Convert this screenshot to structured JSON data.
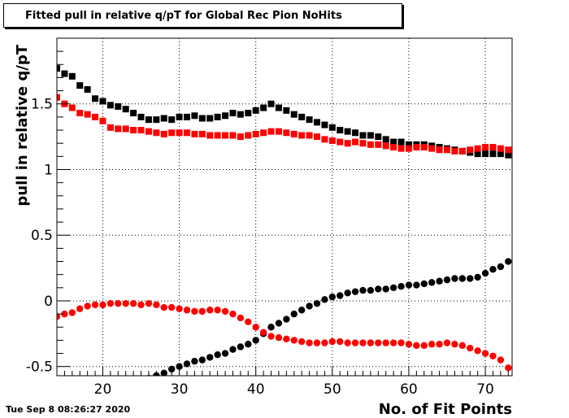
{
  "title": "Fitted pull in relative q/pT for Global Rec Pion NoHits",
  "timestamp": "Tue Sep  8 08:26:27 2020",
  "chart_data": {
    "type": "scatter",
    "xlabel": "No. of Fit Points",
    "ylabel": "pull in relative q/pT",
    "xlim": [
      14,
      73.5
    ],
    "ylim": [
      -0.57,
      2.0
    ],
    "x_ticks": [
      20,
      30,
      40,
      50,
      60,
      70
    ],
    "y_ticks": [
      -0.5,
      0,
      0.5,
      1,
      1.5
    ],
    "grid": true,
    "series": [
      {
        "color": "#000000",
        "marker": "square",
        "x": [
          14,
          15,
          16,
          17,
          18,
          19,
          20,
          21,
          22,
          23,
          24,
          25,
          26,
          27,
          28,
          29,
          30,
          31,
          32,
          33,
          34,
          35,
          36,
          37,
          38,
          39,
          40,
          41,
          42,
          43,
          44,
          45,
          46,
          47,
          48,
          49,
          50,
          51,
          52,
          53,
          54,
          55,
          56,
          57,
          58,
          59,
          60,
          61,
          62,
          63,
          64,
          65,
          66,
          67,
          68,
          69,
          70,
          71,
          72,
          73
        ],
        "y": [
          1.77,
          1.73,
          1.71,
          1.64,
          1.61,
          1.54,
          1.52,
          1.49,
          1.48,
          1.46,
          1.43,
          1.4,
          1.38,
          1.38,
          1.39,
          1.38,
          1.4,
          1.4,
          1.41,
          1.39,
          1.39,
          1.4,
          1.41,
          1.43,
          1.42,
          1.43,
          1.45,
          1.47,
          1.5,
          1.47,
          1.45,
          1.42,
          1.4,
          1.38,
          1.36,
          1.34,
          1.32,
          1.3,
          1.29,
          1.28,
          1.26,
          1.26,
          1.25,
          1.23,
          1.21,
          1.21,
          1.19,
          1.19,
          1.19,
          1.18,
          1.17,
          1.16,
          1.15,
          1.14,
          1.13,
          1.12,
          1.12,
          1.12,
          1.12,
          1.11
        ]
      },
      {
        "color": "#ff0000",
        "marker": "square",
        "x": [
          14,
          15,
          16,
          17,
          18,
          19,
          20,
          21,
          22,
          23,
          24,
          25,
          26,
          27,
          28,
          29,
          30,
          31,
          32,
          33,
          34,
          35,
          36,
          37,
          38,
          39,
          40,
          41,
          42,
          43,
          44,
          45,
          46,
          47,
          48,
          49,
          50,
          51,
          52,
          53,
          54,
          55,
          56,
          57,
          58,
          59,
          60,
          61,
          62,
          63,
          64,
          65,
          66,
          67,
          68,
          69,
          70,
          71,
          72,
          73
        ],
        "y": [
          1.55,
          1.5,
          1.47,
          1.43,
          1.42,
          1.4,
          1.37,
          1.32,
          1.31,
          1.31,
          1.3,
          1.3,
          1.29,
          1.28,
          1.27,
          1.28,
          1.28,
          1.28,
          1.27,
          1.27,
          1.26,
          1.26,
          1.26,
          1.26,
          1.25,
          1.26,
          1.27,
          1.28,
          1.29,
          1.29,
          1.28,
          1.27,
          1.26,
          1.26,
          1.25,
          1.23,
          1.22,
          1.21,
          1.2,
          1.21,
          1.2,
          1.19,
          1.19,
          1.18,
          1.17,
          1.16,
          1.16,
          1.17,
          1.17,
          1.16,
          1.15,
          1.15,
          1.14,
          1.14,
          1.15,
          1.16,
          1.17,
          1.17,
          1.16,
          1.15
        ]
      },
      {
        "color": "#000000",
        "marker": "circle",
        "x": [
          26,
          27,
          28,
          29,
          30,
          31,
          32,
          33,
          34,
          35,
          36,
          37,
          38,
          39,
          40,
          41,
          42,
          43,
          44,
          45,
          46,
          47,
          48,
          49,
          50,
          51,
          52,
          53,
          54,
          55,
          56,
          57,
          58,
          59,
          60,
          61,
          62,
          63,
          64,
          65,
          66,
          67,
          68,
          69,
          70,
          71,
          72,
          73
        ],
        "y": [
          -0.59,
          -0.57,
          -0.55,
          -0.52,
          -0.5,
          -0.48,
          -0.46,
          -0.45,
          -0.43,
          -0.41,
          -0.4,
          -0.37,
          -0.35,
          -0.33,
          -0.3,
          -0.25,
          -0.2,
          -0.17,
          -0.14,
          -0.1,
          -0.07,
          -0.04,
          -0.02,
          0.01,
          0.03,
          0.04,
          0.06,
          0.07,
          0.08,
          0.08,
          0.09,
          0.09,
          0.1,
          0.11,
          0.12,
          0.12,
          0.13,
          0.14,
          0.15,
          0.16,
          0.17,
          0.17,
          0.17,
          0.18,
          0.21,
          0.24,
          0.26,
          0.3
        ]
      },
      {
        "color": "#ff0000",
        "marker": "circle",
        "x": [
          14,
          15,
          16,
          17,
          18,
          19,
          20,
          21,
          22,
          23,
          24,
          25,
          26,
          27,
          28,
          29,
          30,
          31,
          32,
          33,
          34,
          35,
          36,
          37,
          38,
          39,
          40,
          41,
          42,
          43,
          44,
          45,
          46,
          47,
          48,
          49,
          50,
          51,
          52,
          53,
          54,
          55,
          56,
          57,
          58,
          59,
          60,
          61,
          62,
          63,
          64,
          65,
          66,
          67,
          68,
          69,
          70,
          71,
          72,
          73
        ],
        "y": [
          -0.12,
          -0.1,
          -0.09,
          -0.06,
          -0.04,
          -0.03,
          -0.03,
          -0.02,
          -0.02,
          -0.02,
          -0.02,
          -0.03,
          -0.02,
          -0.03,
          -0.05,
          -0.05,
          -0.06,
          -0.07,
          -0.08,
          -0.08,
          -0.07,
          -0.07,
          -0.08,
          -0.1,
          -0.13,
          -0.16,
          -0.2,
          -0.24,
          -0.27,
          -0.28,
          -0.29,
          -0.3,
          -0.31,
          -0.32,
          -0.32,
          -0.32,
          -0.31,
          -0.31,
          -0.32,
          -0.32,
          -0.32,
          -0.32,
          -0.32,
          -0.32,
          -0.32,
          -0.32,
          -0.33,
          -0.34,
          -0.34,
          -0.33,
          -0.33,
          -0.32,
          -0.33,
          -0.34,
          -0.36,
          -0.38,
          -0.4,
          -0.42,
          -0.45,
          -0.51
        ]
      }
    ]
  }
}
